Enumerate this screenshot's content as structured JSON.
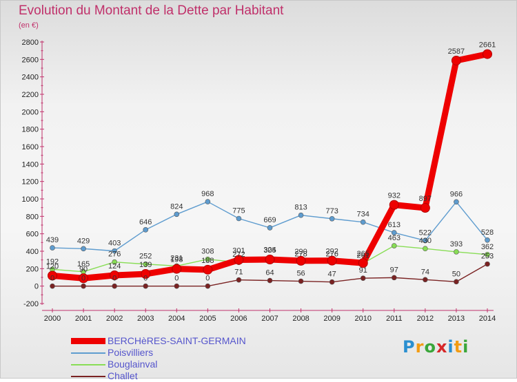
{
  "title": "Evolution du Montant de la Dette par Habitant",
  "unit": "(en €)",
  "logo_text": "Proxiti",
  "chart_data": {
    "type": "line",
    "x": [
      "2000",
      "2001",
      "2002",
      "2003",
      "2004",
      "2005",
      "2006",
      "2007",
      "2008",
      "2009",
      "2010",
      "2011",
      "2012",
      "2013",
      "2014"
    ],
    "ylim": [
      -200,
      2800
    ],
    "yticks": [
      -200,
      0,
      200,
      400,
      600,
      800,
      1000,
      1200,
      1400,
      1600,
      1800,
      2000,
      2200,
      2400,
      2600,
      2800
    ],
    "grid": false,
    "legend_position": "bottom-left",
    "series": [
      {
        "name": "BERCHèRES-SAINT-GERMAIN",
        "color": "#ee0000",
        "values": [
          120,
          90,
          124,
          139,
          198,
          188,
          301,
          305,
          290,
          292,
          265,
          932,
          897,
          2587,
          2661
        ]
      },
      {
        "name": "Poisvilliers",
        "color": "#5e9ccf",
        "values": [
          439,
          429,
          403,
          646,
          824,
          968,
          775,
          669,
          813,
          773,
          734,
          613,
          522,
          966,
          528
        ]
      },
      {
        "name": "Bouglainval",
        "color": "#88dd55",
        "values": [
          192,
          165,
          276,
          252,
          231,
          308,
          272,
          324,
          278,
          276,
          261,
          463,
          430,
          393,
          362
        ]
      },
      {
        "name": "Challet",
        "color": "#7a2222",
        "values": [
          0,
          0,
          0,
          0,
          0,
          0,
          71,
          64,
          56,
          47,
          91,
          97,
          74,
          50,
          253
        ]
      }
    ]
  }
}
